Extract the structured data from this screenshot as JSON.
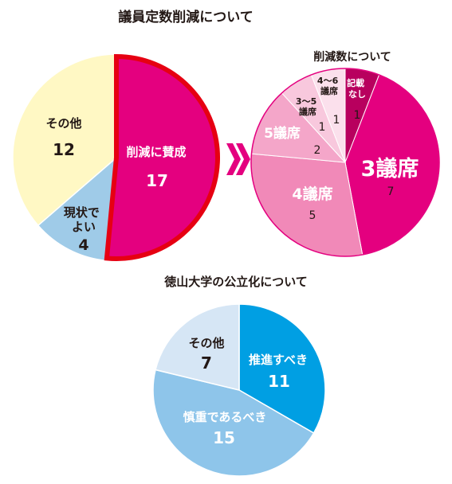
{
  "colors": {
    "yellow": "#FFF8C4",
    "light_blue": "#9FCBE8",
    "magenta": "#E4007F",
    "red_border": "#E60012",
    "dark_magenta": "#B8005E",
    "pink_1": "#F189B8",
    "pink_2": "#F4A6C9",
    "pink_3": "#F8C8DD",
    "pink_4": "#FBE0EC",
    "blue": "#009FE3",
    "sky": "#8EC5EA",
    "pale_blue": "#D6E6F5",
    "arrow": "#E4007F",
    "text": "#231815"
  },
  "chart_data": [
    {
      "type": "pie",
      "title": "議員定数削減について",
      "slices": [
        {
          "label": "削減に賛成",
          "value": 17,
          "color": "#E4007F",
          "highlight": true
        },
        {
          "label": "現状でよい",
          "value": 4,
          "color": "#9FCBE8"
        },
        {
          "label": "その他",
          "value": 12,
          "color": "#FFF8C4"
        }
      ]
    },
    {
      "type": "pie",
      "title": "削減数について",
      "slices": [
        {
          "label": "記載なし",
          "value": 1,
          "color": "#B8005E"
        },
        {
          "label": "3議席",
          "value": 7,
          "color": "#E4007F"
        },
        {
          "label": "4議席",
          "value": 5,
          "color": "#F189B8"
        },
        {
          "label": "5議席",
          "value": 2,
          "color": "#F4A6C9"
        },
        {
          "label": "3～5議席",
          "value": 1,
          "color": "#F8C8DD"
        },
        {
          "label": "4～6議席",
          "value": 1,
          "color": "#FBE0EC"
        }
      ]
    },
    {
      "type": "pie",
      "title": "徳山大学の公立化について",
      "slices": [
        {
          "label": "推進すべき",
          "value": 11,
          "color": "#009FE3"
        },
        {
          "label": "慎重であるべき",
          "value": 15,
          "color": "#8EC5EA"
        },
        {
          "label": "その他",
          "value": 7,
          "color": "#D6E6F5"
        }
      ]
    }
  ]
}
